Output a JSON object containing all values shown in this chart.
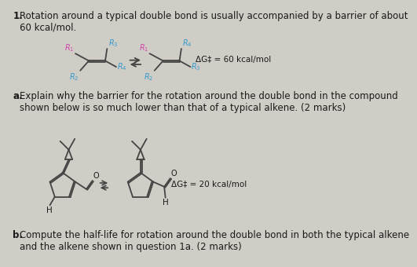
{
  "bg_color": "#d0cdc6",
  "title_number": "1.",
  "title_text": "Rotation around a typical double bond is usually accompanied by a barrier of about\n60 kcal/mol.",
  "title_fontsize": 8.5,
  "part_a_label": "a.",
  "part_a_text": "Explain why the barrier for the rotation around the double bond in the compound\nshown below is so much lower than that of a typical alkene. (2 marks)",
  "part_b_label": "b.",
  "part_b_text": "Compute the half-life for rotation around the double bond in both the typical alkene\nand the alkene shown in question 1a. (2 marks)",
  "dG_top": "ΔG‡ = 60 kcal/mol",
  "dG_bottom": "ΔG‡ = 20 kcal/mol",
  "text_color": "#1a1a1a",
  "label_color_R1": "#cc44aa",
  "label_color_R234": "#3399cc",
  "arrow_color": "#333333",
  "bond_color": "#444444",
  "font_family": "DejaVu Sans"
}
